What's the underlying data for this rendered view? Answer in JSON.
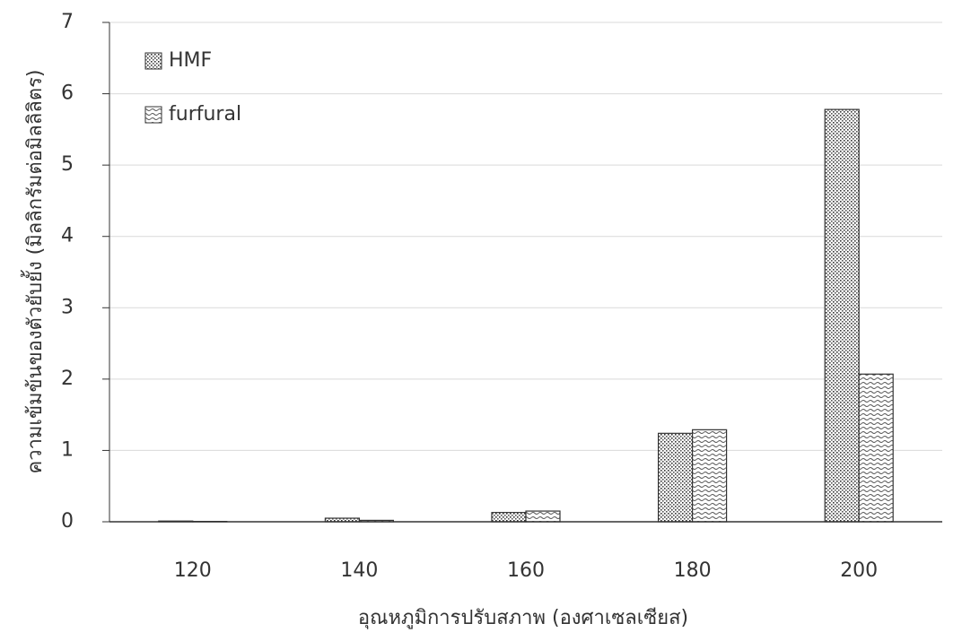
{
  "chart_data": {
    "type": "bar",
    "x_label": "อุณหภูมิการปรับสภาพ (องศาเซลเซียส)",
    "y_label": "ความเข้มข้นของตัวยับยั้ง (มิลลิกรัมต่อมิลลิลิตร)",
    "categories": [
      "120",
      "140",
      "160",
      "180",
      "200"
    ],
    "series": [
      {
        "name": "HMF",
        "color": "#555555",
        "values": [
          0.01,
          0.05,
          0.13,
          1.24,
          5.78
        ]
      },
      {
        "name": "furfural",
        "color": "#888888",
        "values": [
          0.005,
          0.02,
          0.15,
          1.29,
          2.07
        ]
      }
    ],
    "ylim": [
      0,
      7
    ],
    "yticks": [
      0,
      1,
      2,
      3,
      4,
      5,
      6,
      7
    ],
    "grid": true,
    "legend": "upper-left"
  }
}
